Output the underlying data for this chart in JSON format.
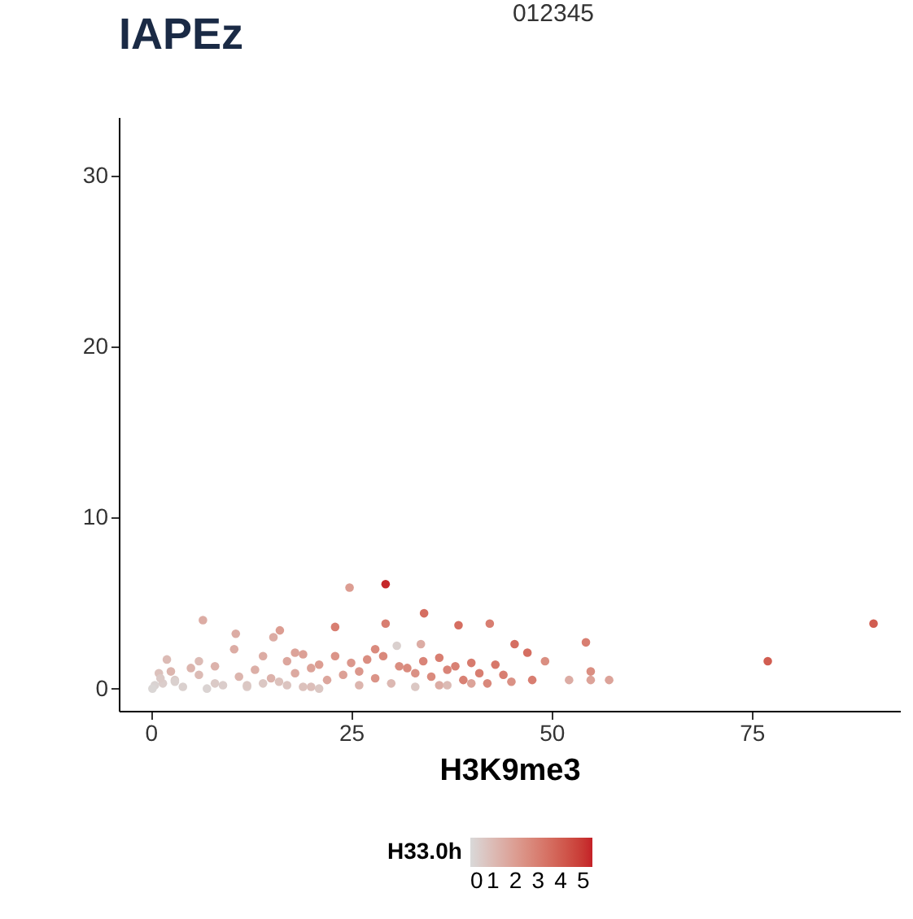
{
  "chart_data": {
    "type": "scatter",
    "title": "IAPEz",
    "xlabel": "H3K9me3",
    "clabel": "H33.0h",
    "annotations": [
      "012345"
    ],
    "xlim": [
      -4,
      93.5
    ],
    "ylim": [
      -1.3,
      33.4
    ],
    "xticks": [
      0,
      25,
      50,
      75
    ],
    "yticks": [
      0,
      10,
      20,
      30
    ],
    "clim": [
      0,
      5.4
    ],
    "cticks": [
      0,
      1,
      2,
      3,
      4,
      5
    ],
    "grid": false,
    "marker": "circle",
    "x": [
      90.2,
      77,
      29.3,
      24.8,
      6.5,
      34.1,
      29.3,
      23,
      38.4,
      42.3,
      45.4,
      47,
      54.3,
      47.6,
      52.2,
      54.9,
      57.2,
      54.9,
      49.2,
      30.7,
      33.7,
      10.6,
      16.1,
      15.3,
      10.4,
      2,
      5,
      1,
      3,
      0.5,
      0.2,
      1.5,
      4,
      7,
      9,
      12,
      14,
      17,
      19,
      21,
      2.5,
      6,
      8,
      11,
      13,
      15,
      18,
      20,
      22,
      24,
      26,
      28,
      31,
      33,
      35,
      37,
      39,
      41,
      43,
      25,
      27,
      29,
      32,
      34,
      36,
      38,
      40,
      42,
      44,
      23,
      21,
      19,
      17,
      3,
      8,
      12,
      16,
      20,
      26,
      30,
      36,
      40,
      45,
      18,
      14,
      6,
      1.2,
      33,
      37,
      28
    ],
    "values": [
      3.8,
      1.6,
      6.1,
      5.9,
      4.0,
      4.4,
      3.8,
      3.6,
      3.7,
      3.8,
      2.6,
      2.1,
      2.7,
      0.5,
      0.5,
      0.5,
      0.5,
      1.0,
      1.6,
      2.5,
      2.6,
      3.2,
      3.4,
      3.0,
      2.3,
      1.7,
      1.2,
      0.9,
      0.5,
      0.2,
      0.0,
      0.3,
      0.1,
      0.0,
      0.2,
      0.1,
      0.3,
      0.2,
      0.1,
      0.0,
      1.0,
      0.8,
      1.3,
      0.7,
      1.1,
      0.6,
      0.9,
      1.2,
      0.5,
      0.8,
      1.0,
      0.6,
      1.3,
      0.9,
      0.7,
      1.1,
      0.5,
      0.9,
      1.4,
      1.5,
      1.7,
      1.9,
      1.2,
      1.6,
      1.8,
      1.3,
      1.5,
      0.3,
      0.8,
      1.9,
      1.4,
      2.0,
      1.6,
      0.4,
      0.3,
      0.2,
      0.4,
      0.1,
      0.2,
      0.3,
      0.2,
      0.3,
      0.4,
      2.1,
      1.9,
      1.6,
      0.6,
      0.1,
      0.2,
      2.3
    ],
    "cvalues": [
      4.0,
      4.0,
      5.3,
      2.0,
      1.5,
      3.5,
      3.0,
      3.0,
      3.5,
      3.0,
      3.5,
      3.5,
      3.0,
      3.0,
      1.5,
      1.8,
      1.8,
      2.5,
      2.5,
      0.3,
      1.5,
      1.5,
      2.0,
      1.5,
      1.5,
      1.0,
      1.2,
      0.8,
      0.5,
      0.2,
      0.1,
      0.4,
      0.3,
      0.2,
      0.4,
      0.5,
      0.6,
      0.7,
      0.8,
      0.6,
      1.2,
      1.0,
      1.3,
      1.2,
      1.4,
      1.3,
      1.6,
      1.8,
      1.7,
      1.9,
      2.2,
      2.3,
      2.5,
      2.4,
      2.6,
      2.8,
      2.9,
      3.0,
      3.2,
      2.2,
      2.5,
      2.7,
      2.6,
      2.8,
      3.0,
      2.9,
      3.1,
      2.7,
      3.0,
      2.3,
      2.0,
      1.9,
      1.7,
      0.3,
      0.5,
      0.6,
      0.8,
      0.9,
      1.2,
      1.1,
      1.5,
      1.8,
      2.4,
      1.8,
      1.5,
      1.0,
      0.5,
      0.6,
      1.0,
      2.6
    ]
  }
}
